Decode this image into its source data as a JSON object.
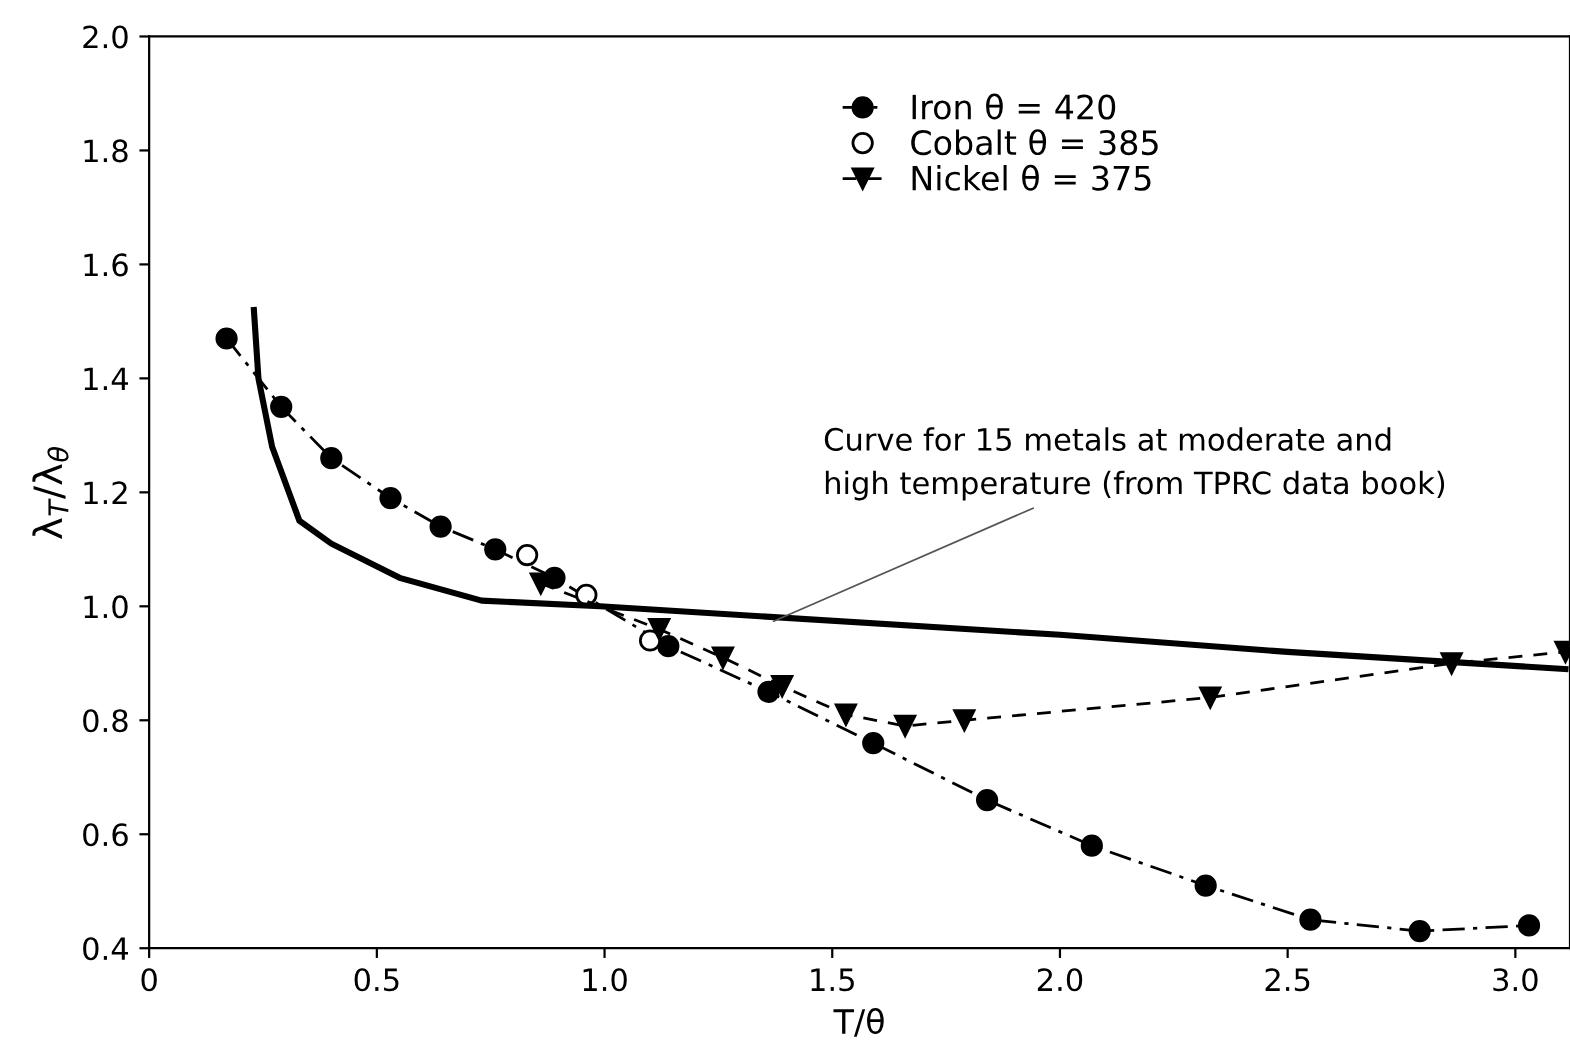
{
  "chart_data": {
    "type": "line",
    "xlabel": "T/θ",
    "ylabel": "λ$_{T}$/λ$_{θ}$",
    "xlim": [
      0,
      3.12
    ],
    "ylim": [
      0.4,
      2.0
    ],
    "xticks": [
      0,
      0.5,
      {
        "value": 1,
        "label": "1.0"
      },
      1.5,
      {
        "value": 2,
        "label": "2.0"
      },
      2.5,
      {
        "value": 3,
        "label": "3.0"
      }
    ],
    "yticks": [
      0.4,
      0.6,
      0.8,
      {
        "value": 1,
        "label": "1.0"
      },
      1.2,
      1.4,
      1.6,
      1.8,
      {
        "value": 2,
        "label": "2.0"
      }
    ],
    "grid": false,
    "legend": "top",
    "series": [
      {
        "name": "Iron θ = 420",
        "marker": "circle",
        "line_style": "dashdot",
        "color": "#000000",
        "x": [
          0.17,
          0.29,
          0.4,
          0.53,
          0.64,
          0.76,
          0.89,
          1.14,
          1.36,
          1.59,
          1.84,
          2.07,
          2.32,
          2.55,
          2.79,
          3.03
        ],
        "values": [
          1.47,
          1.35,
          1.26,
          1.19,
          1.14,
          1.1,
          1.05,
          0.93,
          0.85,
          0.76,
          0.66,
          0.58,
          0.51,
          0.45,
          0.43,
          0.44
        ]
      },
      {
        "name": "Cobalt θ = 385",
        "type": "scatter",
        "marker": "open circle",
        "color": "#000000",
        "x": [
          0.83,
          0.96,
          1.1
        ],
        "values": [
          1.09,
          1.02,
          0.94
        ]
      },
      {
        "name": "Nickel θ = 375",
        "marker": "triangle",
        "line_style": "dashed",
        "color": "#000000",
        "x": [
          0.86,
          1.12,
          1.26,
          1.39,
          1.53,
          1.66,
          1.79,
          2.33,
          2.86,
          3.11
        ],
        "values": [
          1.04,
          0.96,
          0.91,
          0.86,
          0.81,
          0.79,
          0.8,
          0.84,
          0.9,
          0.92
        ]
      },
      {
        "marker": "none",
        "line_style": "solid",
        "color": "#000000",
        "x": [
          0.23,
          0.24,
          0.27,
          0.33,
          0.4,
          0.55,
          0.73,
          0.99,
          2.0,
          2.5,
          3.11
        ],
        "values": [
          1.52,
          1.4,
          1.28,
          1.15,
          1.11,
          1.05,
          1.01,
          1.0,
          0.95,
          0.92,
          0.89
        ]
      }
    ],
    "annotations": [
      {
        "text": "Curve for 15 metals at moderate and\nhigh temperature (from TPRC data book)",
        "x": 1.36,
        "y": 0.97
      }
    ]
  }
}
